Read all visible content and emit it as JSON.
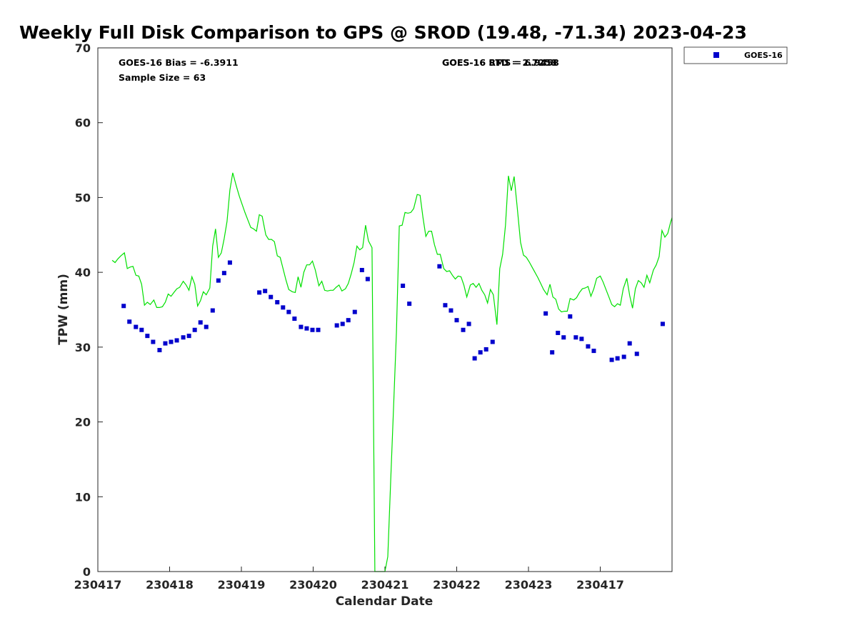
{
  "chart_data": {
    "type": "scatter",
    "title": "Weekly Full Disk Comparison to GPS @ SROD (19.48, -71.34) 2023-04-23",
    "xlabel": "Calendar Date",
    "ylabel": "TPW (mm)",
    "xlim": [
      0,
      8
    ],
    "ylim": [
      0,
      70
    ],
    "x_ticks": [
      0,
      1,
      2,
      3,
      4,
      5,
      6,
      7
    ],
    "x_tick_labels": [
      "230417",
      "230418",
      "230419",
      "230420",
      "230421",
      "230422",
      "230423",
      "230417"
    ],
    "y_ticks": [
      0,
      10,
      20,
      30,
      40,
      50,
      60,
      70
    ],
    "y_tick_labels": [
      "0",
      "10",
      "20",
      "30",
      "40",
      "50",
      "60",
      "70"
    ],
    "annotations": {
      "bias": "GOES-16 Bias = -6.3911",
      "sample_size": "Sample Size = 63",
      "std": "GOES-16 STD = 2.7258",
      "rms": "GOES-16 RMS = 6.9458"
    },
    "legend": {
      "placement": "top-right",
      "entries": [
        "GOES-16"
      ]
    },
    "series": [
      {
        "name": "GOES-16",
        "kind": "scatter",
        "color": "#0000cc",
        "points": [
          [
            0.36,
            35.5
          ],
          [
            0.44,
            33.4
          ],
          [
            0.53,
            32.7
          ],
          [
            0.61,
            32.3
          ],
          [
            0.69,
            31.5
          ],
          [
            0.77,
            30.7
          ],
          [
            0.86,
            29.6
          ],
          [
            0.94,
            30.5
          ],
          [
            1.02,
            30.7
          ],
          [
            1.1,
            30.9
          ],
          [
            1.19,
            31.3
          ],
          [
            1.27,
            31.5
          ],
          [
            1.35,
            32.3
          ],
          [
            1.43,
            33.3
          ],
          [
            1.51,
            32.7
          ],
          [
            1.6,
            34.9
          ],
          [
            1.68,
            38.9
          ],
          [
            1.76,
            39.9
          ],
          [
            1.84,
            41.3
          ],
          [
            2.25,
            37.3
          ],
          [
            2.33,
            37.5
          ],
          [
            2.41,
            36.7
          ],
          [
            2.5,
            36.0
          ],
          [
            2.58,
            35.3
          ],
          [
            2.66,
            34.7
          ],
          [
            2.74,
            33.8
          ],
          [
            2.83,
            32.7
          ],
          [
            2.91,
            32.5
          ],
          [
            2.99,
            32.3
          ],
          [
            3.07,
            32.3
          ],
          [
            3.33,
            32.9
          ],
          [
            3.41,
            33.1
          ],
          [
            3.49,
            33.6
          ],
          [
            3.58,
            34.7
          ],
          [
            3.68,
            40.3
          ],
          [
            3.76,
            39.1
          ],
          [
            4.25,
            38.2
          ],
          [
            4.34,
            35.8
          ],
          [
            4.76,
            40.8
          ],
          [
            4.84,
            35.6
          ],
          [
            4.92,
            34.9
          ],
          [
            5.0,
            33.6
          ],
          [
            5.09,
            32.3
          ],
          [
            5.17,
            33.1
          ],
          [
            5.25,
            28.5
          ],
          [
            5.33,
            29.3
          ],
          [
            5.41,
            29.7
          ],
          [
            5.5,
            30.7
          ],
          [
            6.24,
            34.5
          ],
          [
            6.33,
            29.3
          ],
          [
            6.41,
            31.9
          ],
          [
            6.49,
            31.3
          ],
          [
            6.58,
            34.1
          ],
          [
            6.66,
            31.3
          ],
          [
            6.74,
            31.1
          ],
          [
            6.83,
            30.1
          ],
          [
            6.91,
            29.5
          ],
          [
            7.16,
            28.3
          ],
          [
            7.24,
            28.5
          ],
          [
            7.33,
            28.7
          ],
          [
            7.41,
            30.5
          ],
          [
            7.51,
            29.1
          ],
          [
            7.87,
            33.1
          ]
        ]
      },
      {
        "name": "GPS",
        "kind": "line",
        "color": "#00e000",
        "points": [
          [
            0.2,
            41.6
          ],
          [
            0.24,
            41.3
          ],
          [
            0.28,
            41.8
          ],
          [
            0.32,
            42.2
          ],
          [
            0.37,
            42.6
          ],
          [
            0.41,
            40.5
          ],
          [
            0.45,
            40.7
          ],
          [
            0.49,
            40.8
          ],
          [
            0.53,
            39.6
          ],
          [
            0.57,
            39.5
          ],
          [
            0.61,
            38.4
          ],
          [
            0.65,
            35.6
          ],
          [
            0.69,
            36.0
          ],
          [
            0.73,
            35.7
          ],
          [
            0.78,
            36.3
          ],
          [
            0.82,
            35.3
          ],
          [
            0.86,
            35.3
          ],
          [
            0.9,
            35.4
          ],
          [
            0.94,
            36.0
          ],
          [
            0.98,
            37.1
          ],
          [
            1.02,
            36.8
          ],
          [
            1.06,
            37.3
          ],
          [
            1.1,
            37.8
          ],
          [
            1.14,
            38.0
          ],
          [
            1.19,
            38.8
          ],
          [
            1.23,
            38.3
          ],
          [
            1.27,
            37.6
          ],
          [
            1.31,
            39.4
          ],
          [
            1.35,
            38.4
          ],
          [
            1.39,
            35.5
          ],
          [
            1.43,
            36.2
          ],
          [
            1.47,
            37.4
          ],
          [
            1.51,
            37.0
          ],
          [
            1.56,
            37.9
          ],
          [
            1.6,
            43.5
          ],
          [
            1.64,
            45.8
          ],
          [
            1.68,
            42.0
          ],
          [
            1.72,
            42.6
          ],
          [
            1.76,
            44.5
          ],
          [
            1.8,
            46.8
          ],
          [
            1.84,
            51.0
          ],
          [
            1.88,
            53.3
          ],
          [
            1.93,
            51.5
          ],
          [
            1.97,
            50.2
          ],
          [
            2.01,
            49.1
          ],
          [
            2.05,
            48.0
          ],
          [
            2.09,
            47.0
          ],
          [
            2.13,
            46.0
          ],
          [
            2.17,
            45.8
          ],
          [
            2.21,
            45.5
          ],
          [
            2.25,
            47.7
          ],
          [
            2.29,
            47.5
          ],
          [
            2.34,
            45.0
          ],
          [
            2.38,
            44.4
          ],
          [
            2.42,
            44.4
          ],
          [
            2.46,
            44.1
          ],
          [
            2.5,
            42.2
          ],
          [
            2.54,
            42.0
          ],
          [
            2.58,
            40.5
          ],
          [
            2.62,
            39.0
          ],
          [
            2.66,
            37.7
          ],
          [
            2.71,
            37.4
          ],
          [
            2.75,
            37.3
          ],
          [
            2.79,
            39.4
          ],
          [
            2.83,
            38.0
          ],
          [
            2.87,
            40.0
          ],
          [
            2.91,
            41.0
          ],
          [
            2.95,
            41.0
          ],
          [
            2.99,
            41.5
          ],
          [
            3.03,
            40.3
          ],
          [
            3.08,
            38.2
          ],
          [
            3.12,
            38.8
          ],
          [
            3.16,
            37.6
          ],
          [
            3.2,
            37.5
          ],
          [
            3.24,
            37.6
          ],
          [
            3.28,
            37.6
          ],
          [
            3.32,
            38.0
          ],
          [
            3.36,
            38.3
          ],
          [
            3.4,
            37.5
          ],
          [
            3.45,
            37.8
          ],
          [
            3.49,
            38.5
          ],
          [
            3.53,
            39.8
          ],
          [
            3.57,
            41.3
          ],
          [
            3.61,
            43.5
          ],
          [
            3.65,
            43.0
          ],
          [
            3.69,
            43.3
          ],
          [
            3.73,
            46.3
          ],
          [
            3.77,
            44.2
          ],
          [
            3.82,
            43.3
          ],
          [
            3.86,
            0.0
          ],
          [
            4.0,
            0.0
          ],
          [
            4.04,
            2.0
          ],
          [
            4.08,
            12.0
          ],
          [
            4.12,
            22.0
          ],
          [
            4.16,
            32.0
          ],
          [
            4.2,
            46.2
          ],
          [
            4.24,
            46.3
          ],
          [
            4.28,
            48.0
          ],
          [
            4.32,
            47.9
          ],
          [
            4.36,
            48.0
          ],
          [
            4.4,
            48.5
          ],
          [
            4.45,
            50.4
          ],
          [
            4.49,
            50.3
          ],
          [
            4.53,
            47.3
          ],
          [
            4.57,
            44.8
          ],
          [
            4.61,
            45.5
          ],
          [
            4.65,
            45.5
          ],
          [
            4.69,
            43.7
          ],
          [
            4.73,
            42.4
          ],
          [
            4.77,
            42.4
          ],
          [
            4.82,
            40.5
          ],
          [
            4.86,
            40.1
          ],
          [
            4.9,
            40.2
          ],
          [
            4.94,
            39.6
          ],
          [
            4.98,
            39.1
          ],
          [
            5.02,
            39.5
          ],
          [
            5.06,
            39.4
          ],
          [
            5.1,
            38.3
          ],
          [
            5.14,
            36.7
          ],
          [
            5.19,
            38.3
          ],
          [
            5.23,
            38.5
          ],
          [
            5.27,
            38.0
          ],
          [
            5.31,
            38.5
          ],
          [
            5.35,
            37.6
          ],
          [
            5.39,
            37.0
          ],
          [
            5.43,
            35.9
          ],
          [
            5.47,
            37.7
          ],
          [
            5.51,
            37.0
          ],
          [
            5.56,
            33.0
          ],
          [
            5.6,
            40.5
          ],
          [
            5.64,
            42.4
          ],
          [
            5.68,
            46.3
          ],
          [
            5.72,
            52.9
          ],
          [
            5.76,
            50.9
          ],
          [
            5.8,
            52.8
          ],
          [
            5.84,
            49.0
          ],
          [
            5.89,
            44.0
          ],
          [
            5.93,
            42.3
          ],
          [
            5.97,
            42.0
          ],
          [
            6.01,
            41.4
          ],
          [
            6.05,
            40.7
          ],
          [
            6.09,
            40.0
          ],
          [
            6.13,
            39.3
          ],
          [
            6.17,
            38.5
          ],
          [
            6.21,
            37.7
          ],
          [
            6.26,
            37.0
          ],
          [
            6.3,
            38.4
          ],
          [
            6.34,
            36.7
          ],
          [
            6.38,
            36.4
          ],
          [
            6.42,
            35.1
          ],
          [
            6.46,
            34.7
          ],
          [
            6.5,
            34.8
          ],
          [
            6.54,
            34.8
          ],
          [
            6.58,
            36.5
          ],
          [
            6.63,
            36.3
          ],
          [
            6.67,
            36.6
          ],
          [
            6.71,
            37.3
          ],
          [
            6.75,
            37.8
          ],
          [
            6.79,
            37.9
          ],
          [
            6.83,
            38.1
          ],
          [
            6.87,
            36.8
          ],
          [
            6.91,
            37.8
          ],
          [
            6.95,
            39.2
          ],
          [
            7.0,
            39.5
          ],
          [
            7.04,
            38.7
          ],
          [
            7.08,
            37.7
          ],
          [
            7.12,
            36.7
          ],
          [
            7.16,
            35.7
          ],
          [
            7.2,
            35.4
          ],
          [
            7.24,
            35.8
          ],
          [
            7.28,
            35.6
          ],
          [
            7.32,
            37.8
          ],
          [
            7.37,
            39.2
          ],
          [
            7.41,
            36.9
          ],
          [
            7.45,
            35.2
          ],
          [
            7.49,
            37.8
          ],
          [
            7.53,
            38.9
          ],
          [
            7.57,
            38.6
          ],
          [
            7.61,
            38.0
          ],
          [
            7.65,
            39.6
          ],
          [
            7.69,
            38.6
          ],
          [
            7.74,
            40.3
          ],
          [
            7.78,
            41.0
          ],
          [
            7.82,
            42.1
          ],
          [
            7.86,
            45.6
          ],
          [
            7.9,
            44.7
          ],
          [
            7.94,
            45.2
          ],
          [
            7.98,
            46.7
          ],
          [
            8.0,
            47.3
          ]
        ]
      }
    ]
  }
}
